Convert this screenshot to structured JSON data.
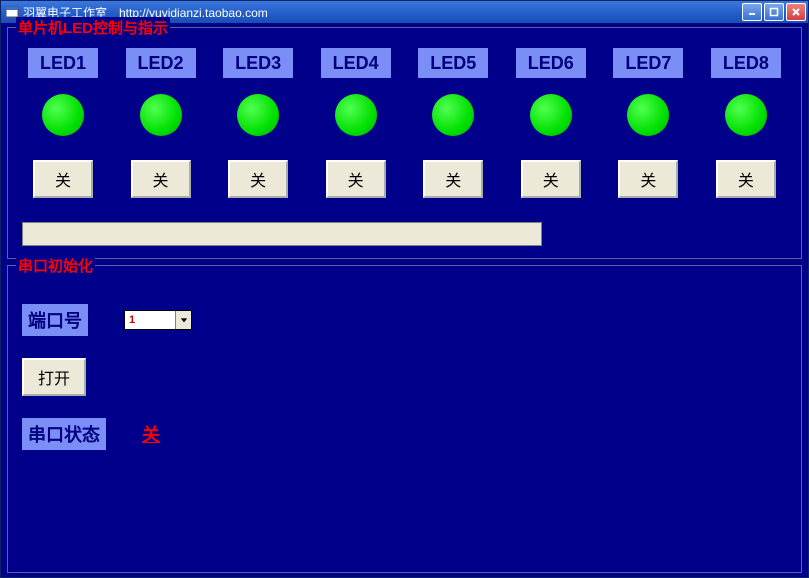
{
  "window": {
    "title": "羽翼电子工作室　http://yuyidianzi.taobao.com"
  },
  "led_group": {
    "title": "单片机LED控制与指示",
    "leds": [
      {
        "label": "LED1",
        "on": true,
        "btn": "关"
      },
      {
        "label": "LED2",
        "on": true,
        "btn": "关"
      },
      {
        "label": "LED3",
        "on": true,
        "btn": "关"
      },
      {
        "label": "LED4",
        "on": true,
        "btn": "关"
      },
      {
        "label": "LED5",
        "on": true,
        "btn": "关"
      },
      {
        "label": "LED6",
        "on": true,
        "btn": "关"
      },
      {
        "label": "LED7",
        "on": true,
        "btn": "关"
      },
      {
        "label": "LED8",
        "on": true,
        "btn": "关"
      }
    ],
    "textbox_value": ""
  },
  "serial_group": {
    "title": "串口初始化",
    "port_label": "端口号",
    "port_value": "1",
    "open_btn": "打开",
    "status_label": "串口状态",
    "status_value": "关"
  },
  "colors": {
    "client_bg": "#00008b",
    "accent_bg": "#7b8ef5",
    "group_title": "#ff0000",
    "led_on": "#00e000",
    "button_bg": "#ece9d8"
  }
}
